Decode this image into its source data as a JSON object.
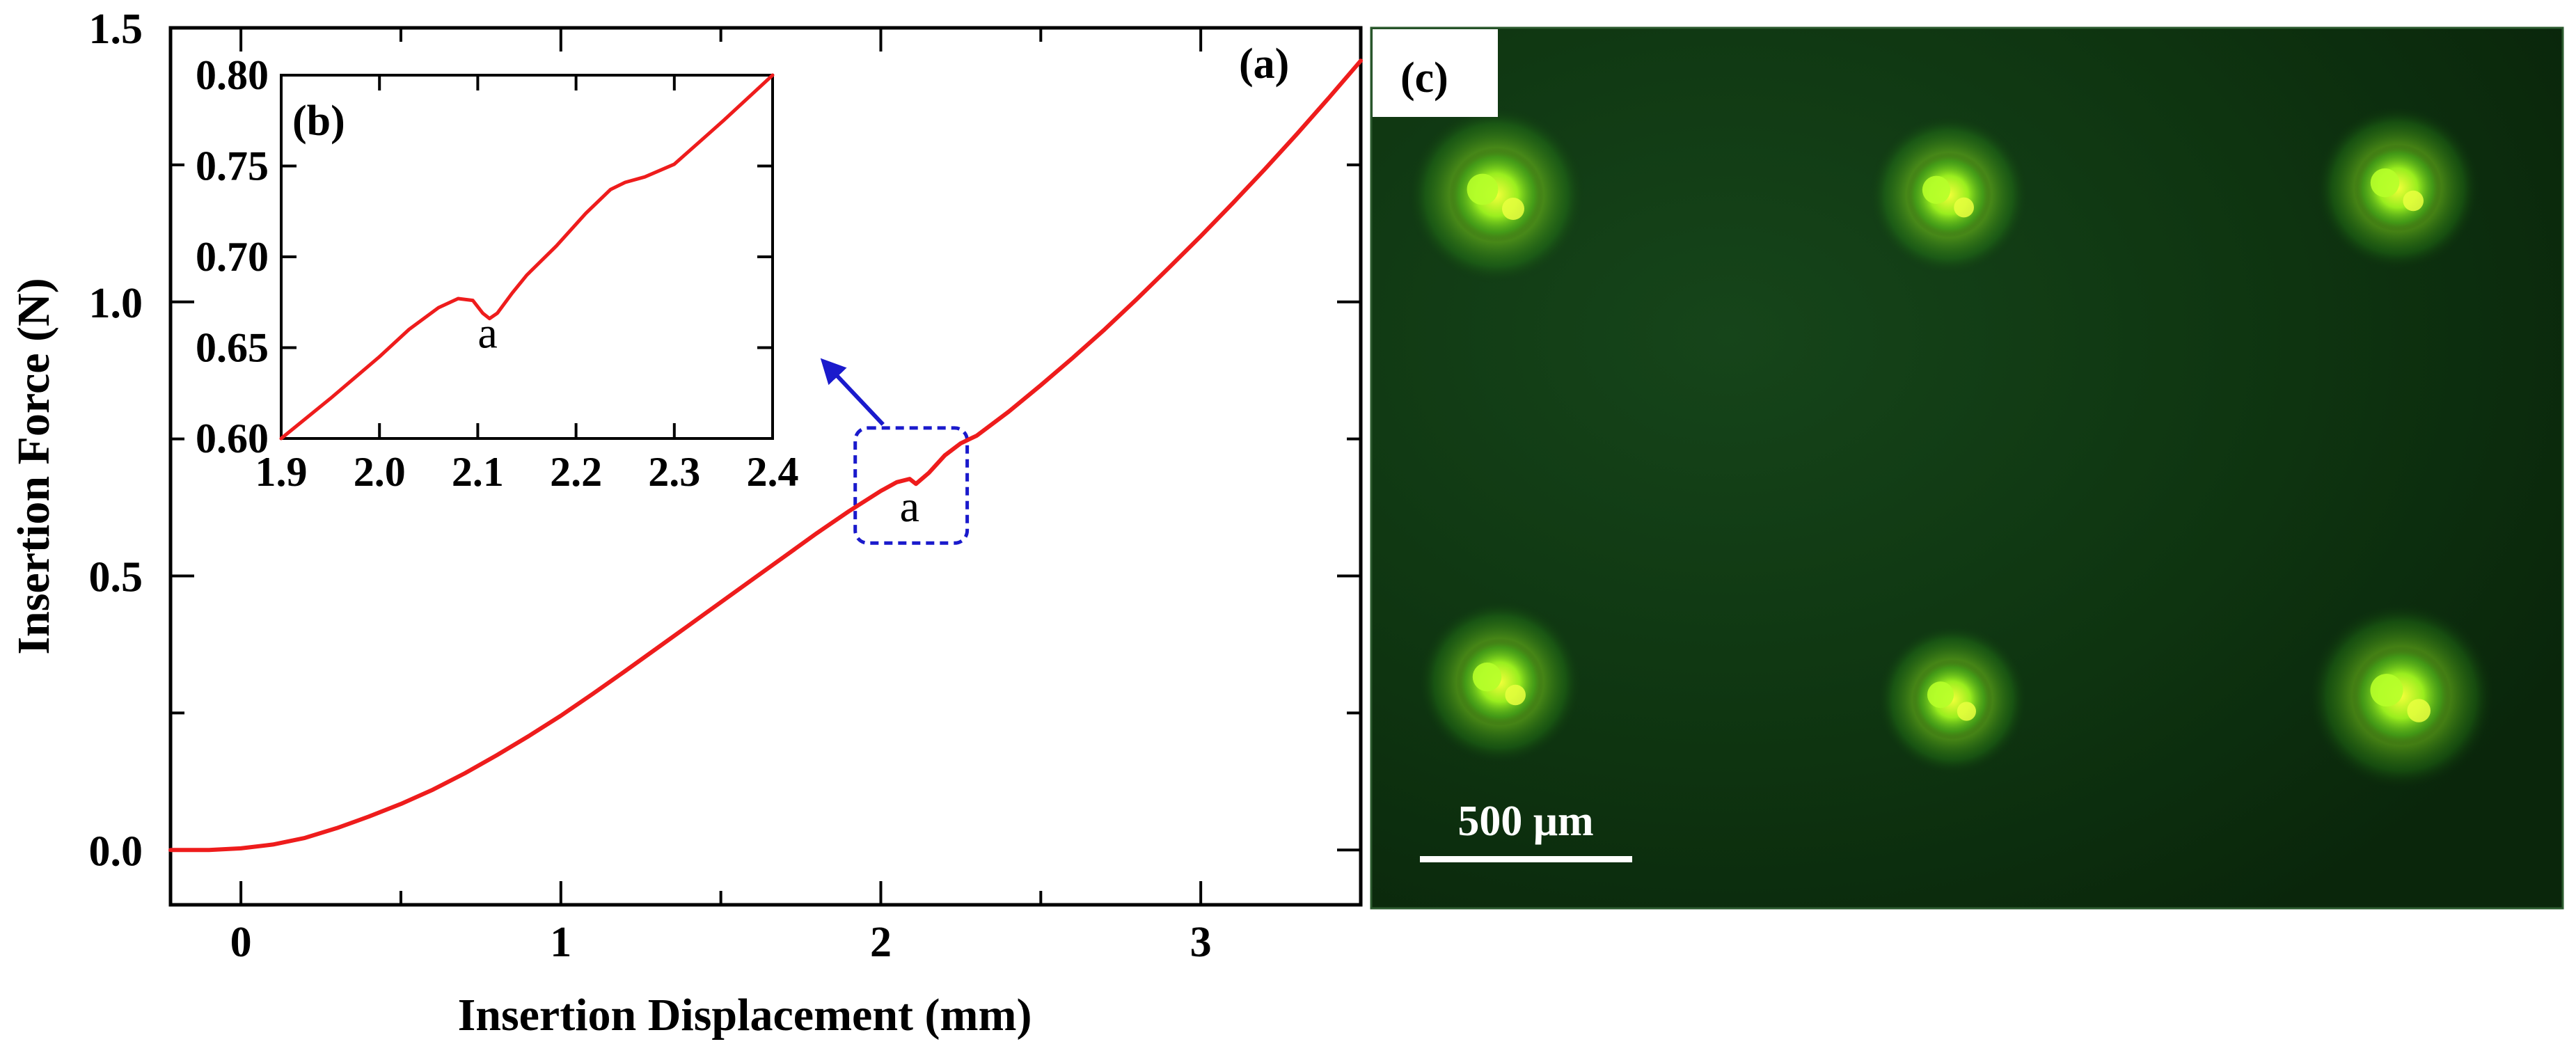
{
  "panels": {
    "a": "(a)",
    "b": "(b)",
    "c": "(c)"
  },
  "chart_data": [
    {
      "type": "line",
      "panel": "(a)",
      "xlabel": "Insertion Displacement (mm)",
      "ylabel": "Insertion Force (N)",
      "xlim": [
        -0.22,
        3.5
      ],
      "ylim": [
        -0.1,
        1.5
      ],
      "xticks": [
        0,
        1,
        2,
        3
      ],
      "xtick_labels": [
        "0",
        "1",
        "2",
        "3"
      ],
      "yticks": [
        0.0,
        0.5,
        1.0,
        1.5
      ],
      "ytick_labels": [
        "0.0",
        "0.5",
        "1.0",
        "1.5"
      ],
      "grid": false,
      "series": [
        {
          "color": "#ee1c1c",
          "x": [
            -0.22,
            -0.1,
            0.0,
            0.1,
            0.2,
            0.3,
            0.4,
            0.5,
            0.6,
            0.7,
            0.8,
            0.9,
            1.0,
            1.1,
            1.2,
            1.3,
            1.4,
            1.5,
            1.6,
            1.7,
            1.8,
            1.9,
            2.0,
            2.05,
            2.09,
            2.11,
            2.15,
            2.2,
            2.25,
            2.3,
            2.4,
            2.5,
            2.6,
            2.7,
            2.8,
            2.9,
            3.0,
            3.1,
            3.2,
            3.3,
            3.4,
            3.5
          ],
          "y": [
            0.0,
            0.0,
            0.003,
            0.01,
            0.022,
            0.04,
            0.061,
            0.084,
            0.11,
            0.14,
            0.173,
            0.208,
            0.245,
            0.285,
            0.326,
            0.368,
            0.41,
            0.452,
            0.494,
            0.536,
            0.578,
            0.618,
            0.655,
            0.671,
            0.677,
            0.668,
            0.688,
            0.72,
            0.742,
            0.756,
            0.8,
            0.848,
            0.898,
            0.95,
            1.005,
            1.062,
            1.12,
            1.18,
            1.242,
            1.306,
            1.372,
            1.44
          ]
        }
      ],
      "annotations": [
        {
          "text": "a",
          "x": 2.09,
          "y": 0.6
        }
      ],
      "highlight_box": {
        "x": [
          1.92,
          2.27
        ],
        "y": [
          0.56,
          0.77
        ],
        "color": "#1a1acc"
      },
      "arrow_color": "#1a1acc"
    },
    {
      "type": "line",
      "panel": "(b)",
      "xlabel": "",
      "ylabel": "",
      "xlim": [
        1.9,
        2.4
      ],
      "ylim": [
        0.6,
        0.8
      ],
      "xticks": [
        1.9,
        2.0,
        2.1,
        2.2,
        2.3,
        2.4
      ],
      "xtick_labels": [
        "1.9",
        "2.0",
        "2.1",
        "2.2",
        "2.3",
        "2.4"
      ],
      "yticks": [
        0.6,
        0.65,
        0.7,
        0.75,
        0.8
      ],
      "ytick_labels": [
        "0.60",
        "0.65",
        "0.70",
        "0.75",
        "0.80"
      ],
      "grid": false,
      "series": [
        {
          "color": "#ee1c1c",
          "x": [
            1.9,
            1.95,
            2.0,
            2.03,
            2.06,
            2.08,
            2.095,
            2.105,
            2.112,
            2.12,
            2.135,
            2.15,
            2.18,
            2.21,
            2.235,
            2.25,
            2.27,
            2.3,
            2.35,
            2.4
          ],
          "y": [
            0.6,
            0.622,
            0.645,
            0.66,
            0.672,
            0.677,
            0.676,
            0.669,
            0.666,
            0.669,
            0.68,
            0.69,
            0.706,
            0.724,
            0.737,
            0.741,
            0.744,
            0.751,
            0.775,
            0.8
          ]
        }
      ],
      "annotations": [
        {
          "text": "a",
          "x": 2.11,
          "y": 0.65
        }
      ]
    }
  ],
  "micrograph": {
    "panel": "(c)",
    "scale_bar_label": "500 μm",
    "background_color": "#0b2b0b",
    "spot_color": "#b6ff2a",
    "spots": [
      "spot-1",
      "spot-2",
      "spot-3",
      "spot-4",
      "spot-5",
      "spot-6"
    ]
  }
}
